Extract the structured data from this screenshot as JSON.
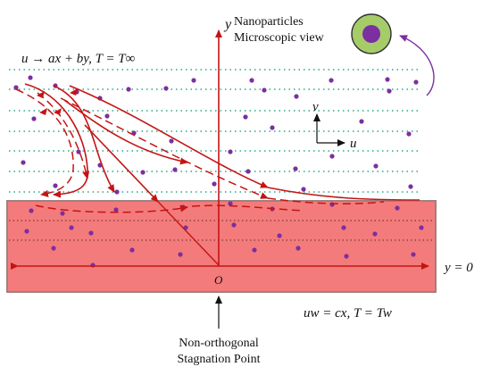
{
  "labels": {
    "y_axis": "y",
    "nanoparticles_line1": "Nanoparticles",
    "nanoparticles_line2": "Microscopic view",
    "freestream": "u → ax + by, T = T∞",
    "v_arrow": "v",
    "u_arrow": "u",
    "y_zero": "y = 0",
    "origin": "O",
    "wall_condition": "uw = cx, T = Tw",
    "stagnation_line1": "Non-orthogonal",
    "stagnation_line2": "Stagnation Point"
  },
  "colors": {
    "plate_fill": "#f47b7b",
    "plate_edge": "#a08080",
    "stream": "#c41414",
    "dotted_green": "#28a88c",
    "particle": "#7b2fa0",
    "particle_outer": "#a6cc6a"
  }
}
